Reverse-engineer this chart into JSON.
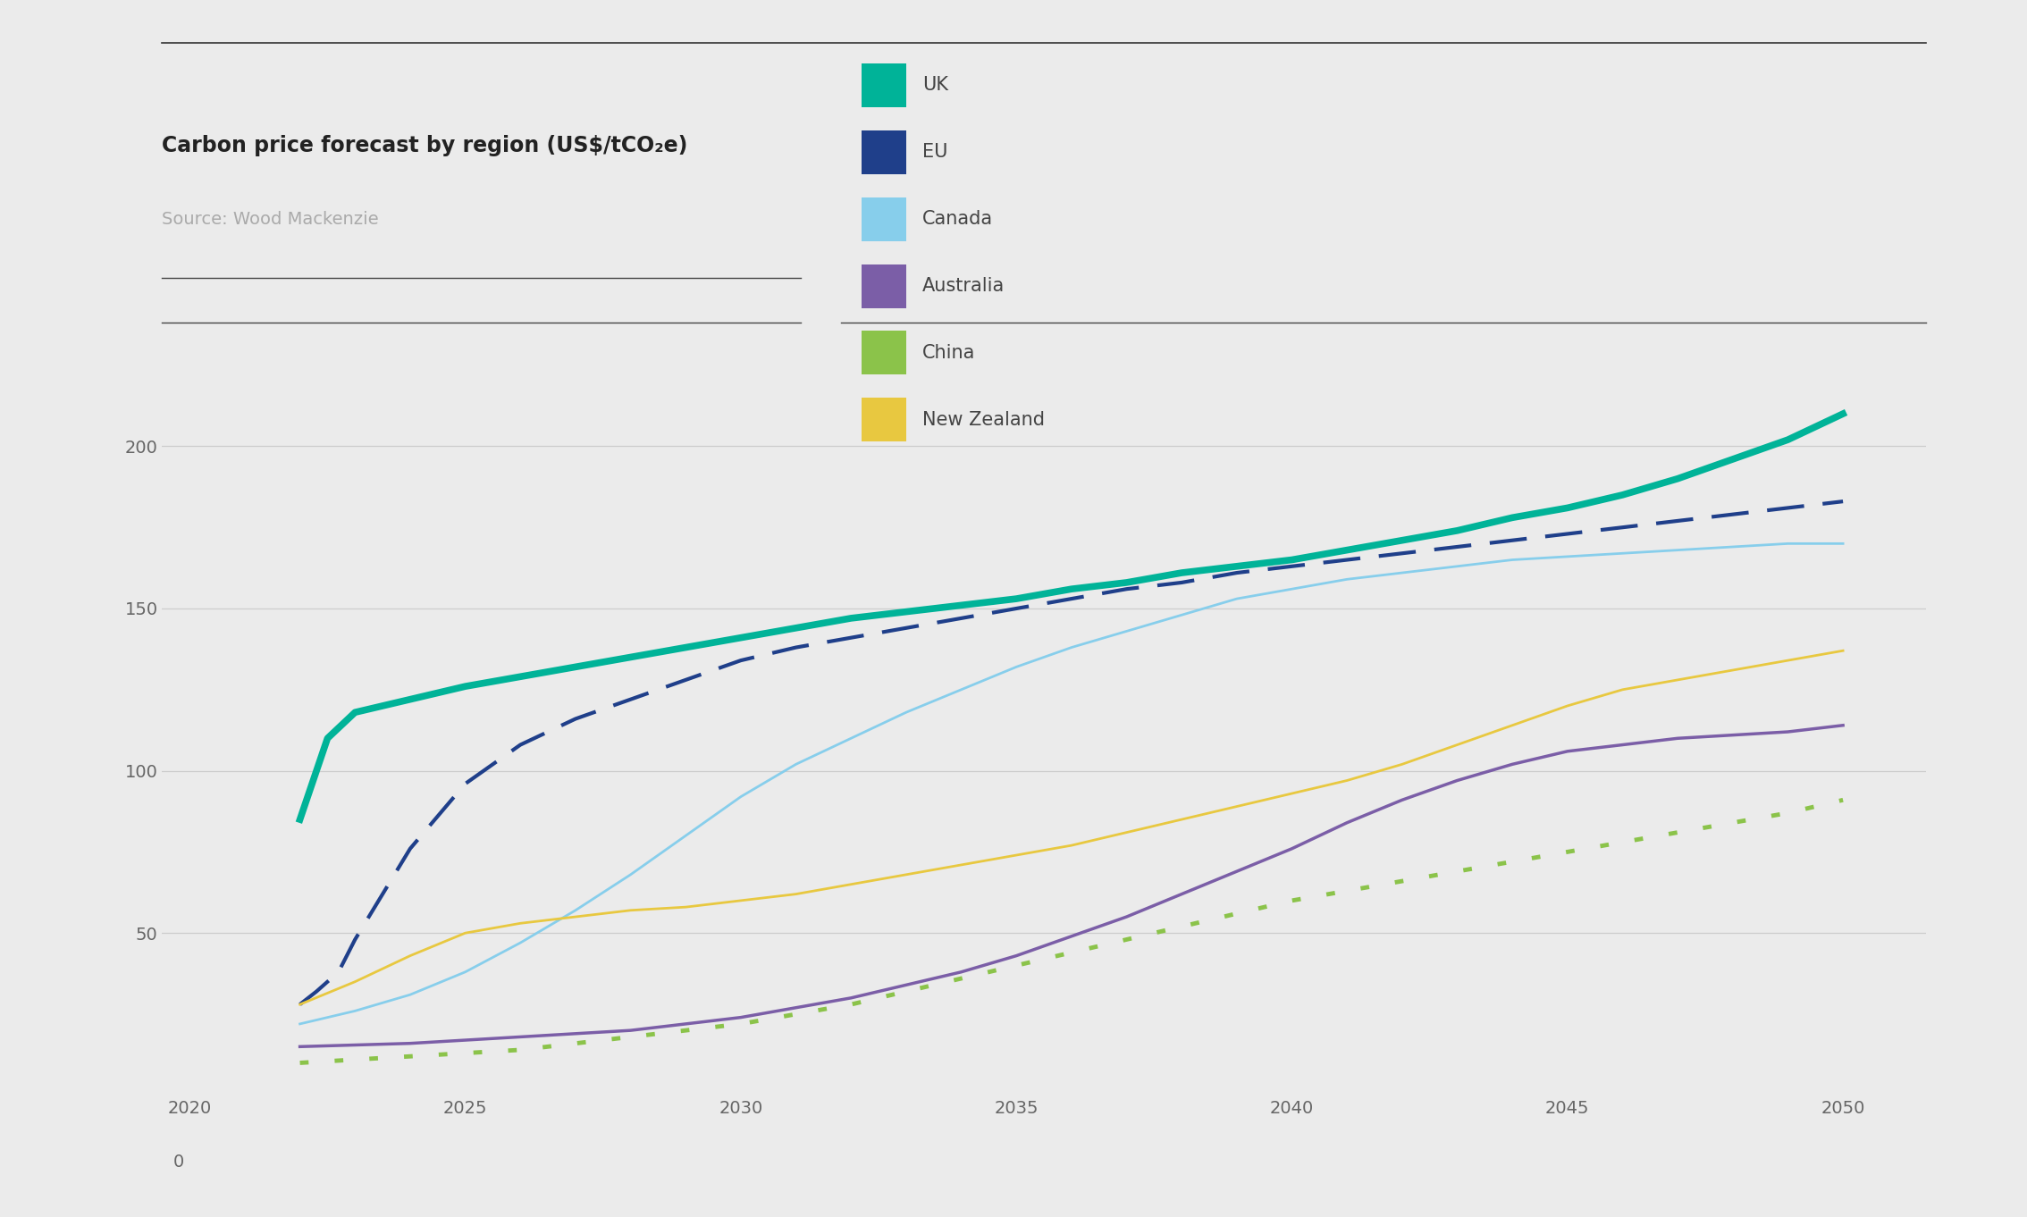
{
  "title": "Carbon price forecast by region (US$/tCO₂e)",
  "source": "Source: Wood Mackenzie",
  "background_color": "#ebebeb",
  "plot_background_color": "#ebebeb",
  "ylim": [
    0,
    225
  ],
  "xlim": [
    2019.5,
    2051.5
  ],
  "yticks": [
    50,
    100,
    150,
    200
  ],
  "xticks": [
    2020,
    2025,
    2030,
    2035,
    2040,
    2045,
    2050
  ],
  "series": {
    "UK": {
      "color": "#00b398",
      "linewidth": 5.5,
      "linestyle": "solid",
      "years": [
        2022,
        2022.5,
        2023,
        2024,
        2025,
        2026,
        2027,
        2028,
        2029,
        2030,
        2031,
        2032,
        2033,
        2034,
        2035,
        2036,
        2037,
        2038,
        2039,
        2040,
        2041,
        2042,
        2043,
        2044,
        2045,
        2046,
        2047,
        2048,
        2049,
        2050
      ],
      "values": [
        85,
        110,
        118,
        122,
        126,
        129,
        132,
        135,
        138,
        141,
        144,
        147,
        149,
        151,
        153,
        156,
        158,
        161,
        163,
        165,
        168,
        171,
        174,
        178,
        181,
        185,
        190,
        196,
        202,
        210
      ]
    },
    "EU": {
      "color": "#1f3f8a",
      "linewidth": 3.0,
      "linestyle": "dashed",
      "years": [
        2022,
        2022.3,
        2022.7,
        2023,
        2023.5,
        2024,
        2025,
        2026,
        2027,
        2028,
        2029,
        2030,
        2031,
        2032,
        2033,
        2034,
        2035,
        2036,
        2037,
        2038,
        2039,
        2040,
        2041,
        2042,
        2043,
        2044,
        2045,
        2046,
        2047,
        2048,
        2049,
        2050
      ],
      "values": [
        28,
        32,
        38,
        48,
        62,
        76,
        96,
        108,
        116,
        122,
        128,
        134,
        138,
        141,
        144,
        147,
        150,
        153,
        156,
        158,
        161,
        163,
        165,
        167,
        169,
        171,
        173,
        175,
        177,
        179,
        181,
        183
      ]
    },
    "Canada": {
      "color": "#87ceeb",
      "linewidth": 2.0,
      "linestyle": "solid",
      "years": [
        2022,
        2023,
        2024,
        2025,
        2026,
        2027,
        2028,
        2029,
        2030,
        2031,
        2032,
        2033,
        2034,
        2035,
        2036,
        2037,
        2038,
        2039,
        2040,
        2041,
        2042,
        2043,
        2044,
        2045,
        2046,
        2047,
        2048,
        2049,
        2050
      ],
      "values": [
        22,
        26,
        31,
        38,
        47,
        57,
        68,
        80,
        92,
        102,
        110,
        118,
        125,
        132,
        138,
        143,
        148,
        153,
        156,
        159,
        161,
        163,
        165,
        166,
        167,
        168,
        169,
        170,
        170
      ]
    },
    "Australia": {
      "color": "#7b5ea7",
      "linewidth": 2.5,
      "linestyle": "solid",
      "years": [
        2022,
        2023,
        2024,
        2025,
        2026,
        2027,
        2028,
        2029,
        2030,
        2031,
        2032,
        2033,
        2034,
        2035,
        2036,
        2037,
        2038,
        2039,
        2040,
        2041,
        2042,
        2043,
        2044,
        2045,
        2046,
        2047,
        2048,
        2049,
        2050
      ],
      "values": [
        15,
        15.5,
        16,
        17,
        18,
        19,
        20,
        22,
        24,
        27,
        30,
        34,
        38,
        43,
        49,
        55,
        62,
        69,
        76,
        84,
        91,
        97,
        102,
        106,
        108,
        110,
        111,
        112,
        114
      ]
    },
    "China": {
      "color": "#8bc34a",
      "linewidth": 3.5,
      "linestyle": "dotted",
      "years": [
        2022,
        2023,
        2024,
        2025,
        2026,
        2027,
        2028,
        2029,
        2030,
        2031,
        2032,
        2033,
        2034,
        2035,
        2036,
        2037,
        2038,
        2039,
        2040,
        2041,
        2042,
        2043,
        2044,
        2045,
        2046,
        2047,
        2048,
        2049,
        2050
      ],
      "values": [
        10,
        11,
        12,
        13,
        14,
        16,
        18,
        20,
        22,
        25,
        28,
        32,
        36,
        40,
        44,
        48,
        52,
        56,
        60,
        63,
        66,
        69,
        72,
        75,
        78,
        81,
        84,
        87,
        91
      ]
    },
    "New Zealand": {
      "color": "#e8c840",
      "linewidth": 2.0,
      "linestyle": "solid",
      "years": [
        2022,
        2023,
        2024,
        2025,
        2026,
        2027,
        2028,
        2029,
        2030,
        2031,
        2032,
        2033,
        2034,
        2035,
        2036,
        2037,
        2038,
        2039,
        2040,
        2041,
        2042,
        2043,
        2044,
        2045,
        2046,
        2047,
        2048,
        2049,
        2050
      ],
      "values": [
        28,
        35,
        43,
        50,
        53,
        55,
        57,
        58,
        60,
        62,
        65,
        68,
        71,
        74,
        77,
        81,
        85,
        89,
        93,
        97,
        102,
        108,
        114,
        120,
        125,
        128,
        131,
        134,
        137
      ]
    }
  },
  "legend_order": [
    "UK",
    "EU",
    "Canada",
    "Australia",
    "China",
    "New Zealand"
  ],
  "legend_colors": {
    "UK": "#00b398",
    "EU": "#1f3f8a",
    "Canada": "#87ceeb",
    "Australia": "#7b5ea7",
    "China": "#8bc34a",
    "New Zealand": "#e8c840"
  },
  "title_fontsize": 17,
  "source_fontsize": 14,
  "tick_fontsize": 14,
  "legend_fontsize": 15
}
